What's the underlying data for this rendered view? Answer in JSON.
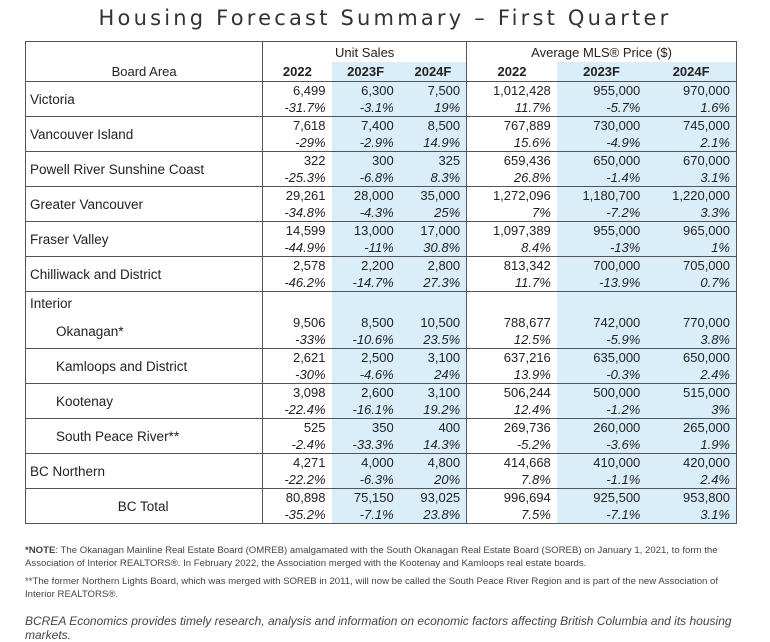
{
  "title": "Housing Forecast Summary – First Quarter",
  "groups": {
    "unit_sales": "Unit Sales",
    "avg_price": "Average MLS® Price ($)"
  },
  "columns": {
    "area": "Board Area",
    "y1": "2022",
    "y2": "2023F",
    "y3": "2024F"
  },
  "rows": [
    {
      "area": "Victoria",
      "s": [
        [
          "6,499",
          "-31.7%"
        ],
        [
          "6,300",
          "-3.1%"
        ],
        [
          "7,500",
          "19%"
        ]
      ],
      "p": [
        [
          "1,012,428",
          "11.7%"
        ],
        [
          "955,000",
          "-5.7%"
        ],
        [
          "970,000",
          "1.6%"
        ]
      ]
    },
    {
      "area": "Vancouver Island",
      "s": [
        [
          "7,618",
          "-29%"
        ],
        [
          "7,400",
          "-2.9%"
        ],
        [
          "8,500",
          "14.9%"
        ]
      ],
      "p": [
        [
          "767,889",
          "15.6%"
        ],
        [
          "730,000",
          "-4.9%"
        ],
        [
          "745,000",
          "2.1%"
        ]
      ]
    },
    {
      "area": "Powell River Sunshine Coast",
      "s": [
        [
          "322",
          "-25.3%"
        ],
        [
          "300",
          "-6.8%"
        ],
        [
          "325",
          "8.3%"
        ]
      ],
      "p": [
        [
          "659,436",
          "26.8%"
        ],
        [
          "650,000",
          "-1.4%"
        ],
        [
          "670,000",
          "3.1%"
        ]
      ]
    },
    {
      "area": "Greater Vancouver",
      "s": [
        [
          "29,261",
          "-34.8%"
        ],
        [
          "28,000",
          "-4.3%"
        ],
        [
          "35,000",
          "25%"
        ]
      ],
      "p": [
        [
          "1,272,096",
          "7%"
        ],
        [
          "1,180,700",
          "-7.2%"
        ],
        [
          "1,220,000",
          "3.3%"
        ]
      ]
    },
    {
      "area": "Fraser Valley",
      "s": [
        [
          "14,599",
          "-44.9%"
        ],
        [
          "13,000",
          "-11%"
        ],
        [
          "17,000",
          "30.8%"
        ]
      ],
      "p": [
        [
          "1,097,389",
          "8.4%"
        ],
        [
          "955,000",
          "-13%"
        ],
        [
          "965,000",
          "1%"
        ]
      ]
    },
    {
      "area": "Chilliwack and District",
      "s": [
        [
          "2,578",
          "-46.2%"
        ],
        [
          "2,200",
          "-14.7%"
        ],
        [
          "2,800",
          "27.3%"
        ]
      ],
      "p": [
        [
          "813,342",
          "11.7%"
        ],
        [
          "700,000",
          "-13.9%"
        ],
        [
          "705,000",
          "0.7%"
        ]
      ]
    }
  ],
  "interior_label": "Interior",
  "interior": [
    {
      "area": "Okanagan*",
      "s": [
        [
          "9,506",
          "-33%"
        ],
        [
          "8,500",
          "-10.6%"
        ],
        [
          "10,500",
          "23.5%"
        ]
      ],
      "p": [
        [
          "788,677",
          "12.5%"
        ],
        [
          "742,000",
          "-5.9%"
        ],
        [
          "770,000",
          "3.8%"
        ]
      ]
    },
    {
      "area": "Kamloops and District",
      "s": [
        [
          "2,621",
          "-30%"
        ],
        [
          "2,500",
          "-4.6%"
        ],
        [
          "3,100",
          "24%"
        ]
      ],
      "p": [
        [
          "637,216",
          "13.9%"
        ],
        [
          "635,000",
          "-0.3%"
        ],
        [
          "650,000",
          "2.4%"
        ]
      ]
    },
    {
      "area": "Kootenay",
      "s": [
        [
          "3,098",
          "-22.4%"
        ],
        [
          "2,600",
          "-16.1%"
        ],
        [
          "3,100",
          "19.2%"
        ]
      ],
      "p": [
        [
          "506,244",
          "12.4%"
        ],
        [
          "500,000",
          "-1.2%"
        ],
        [
          "515,000",
          "3%"
        ]
      ]
    },
    {
      "area": "South Peace River**",
      "s": [
        [
          "525",
          "-2.4%"
        ],
        [
          "350",
          "-33.3%"
        ],
        [
          "400",
          "14.3%"
        ]
      ],
      "p": [
        [
          "269,736",
          "-5.2%"
        ],
        [
          "260,000",
          "-3.6%"
        ],
        [
          "265,000",
          "1.9%"
        ]
      ]
    }
  ],
  "northern": {
    "area": "BC Northern",
    "s": [
      [
        "4,271",
        "-22.2%"
      ],
      [
        "4,000",
        "-6.3%"
      ],
      [
        "4,800",
        "20%"
      ]
    ],
    "p": [
      [
        "414,668",
        "7.8%"
      ],
      [
        "410,000",
        "-1.1%"
      ],
      [
        "420,000",
        "2.4%"
      ]
    ]
  },
  "total": {
    "area": "BC Total",
    "s": [
      [
        "80,898",
        "-35.2%"
      ],
      [
        "75,150",
        "-7.1%"
      ],
      [
        "93,025",
        "23.8%"
      ]
    ],
    "p": [
      [
        "996,694",
        "7.5%"
      ],
      [
        "925,500",
        "-7.1%"
      ],
      [
        "953,800",
        "3.1%"
      ]
    ]
  },
  "notes": {
    "note1_label": "*NOTE",
    "note1_text": ": The Okanagan Mainline Real Estate Board (OMREB) amalgamated with the South Okanagan Real Estate Board (SOREB) on January 1, 2021, to form the Association of Interior REALTORS®. In February 2022, the Association merged with the Kootenay and Kamloops real estate boards.",
    "note2": "**The former Northern Lights Board, which was merged with SOREB in 2011, will now be called the South Peace River Region and is part of the new Association of Interior REALTORS®."
  },
  "footer": "BCREA Economics provides timely research, analysis and information on economic factors affecting British Columbia and its housing markets.",
  "colors": {
    "shade": "#d9eef8",
    "border": "#555555"
  }
}
